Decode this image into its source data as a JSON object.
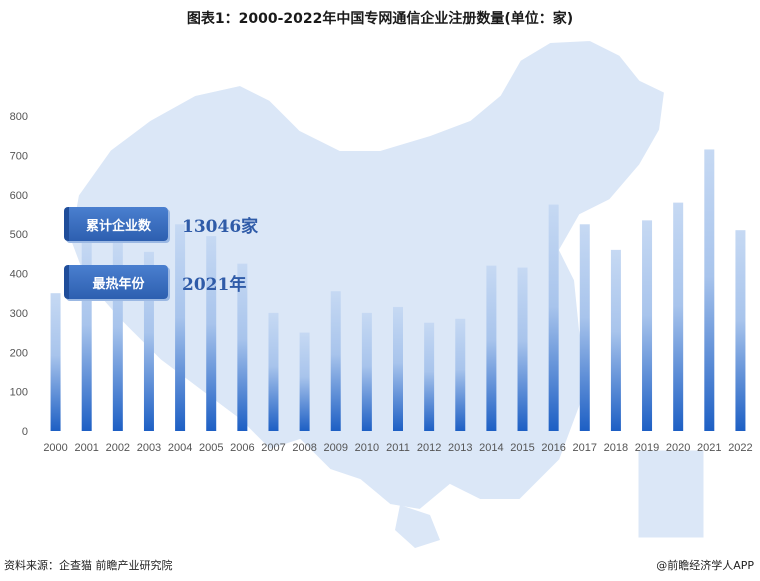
{
  "title": "图表1：2000-2022年中国专网通信企业注册数量(单位：家)",
  "info": [
    {
      "tag": "累计企业数",
      "value": "13046家"
    },
    {
      "tag": "最热年份",
      "value": "2021年"
    }
  ],
  "source": "资料来源：企查猫 前瞻产业研究院",
  "brand": "@前瞻经济学人APP",
  "colors": {
    "bar_top": "#c6d9f3",
    "bar_bottom": "#1d5fc4",
    "map": "#dbe7f7",
    "tag": "#3a6dbd"
  },
  "chart_data": {
    "type": "bar",
    "title": "图表1：2000-2022年中国专网通信企业注册数量(单位：家)",
    "xlabel": "",
    "ylabel": "",
    "ylim": [
      0,
      800
    ],
    "yticks": [
      0,
      100,
      200,
      300,
      400,
      500,
      600,
      700,
      800
    ],
    "grid": false,
    "categories": [
      "2000",
      "2001",
      "2002",
      "2003",
      "2004",
      "2005",
      "2006",
      "2007",
      "2008",
      "2009",
      "2010",
      "2011",
      "2012",
      "2013",
      "2014",
      "2015",
      "2016",
      "2017",
      "2018",
      "2019",
      "2020",
      "2021",
      "2022"
    ],
    "series": [
      {
        "values": [
          350,
          490,
          480,
          455,
          525,
          495,
          425,
          300,
          250,
          355,
          300,
          315,
          275,
          285,
          420,
          415,
          575,
          525,
          460,
          535,
          580,
          715,
          510
        ]
      }
    ]
  }
}
